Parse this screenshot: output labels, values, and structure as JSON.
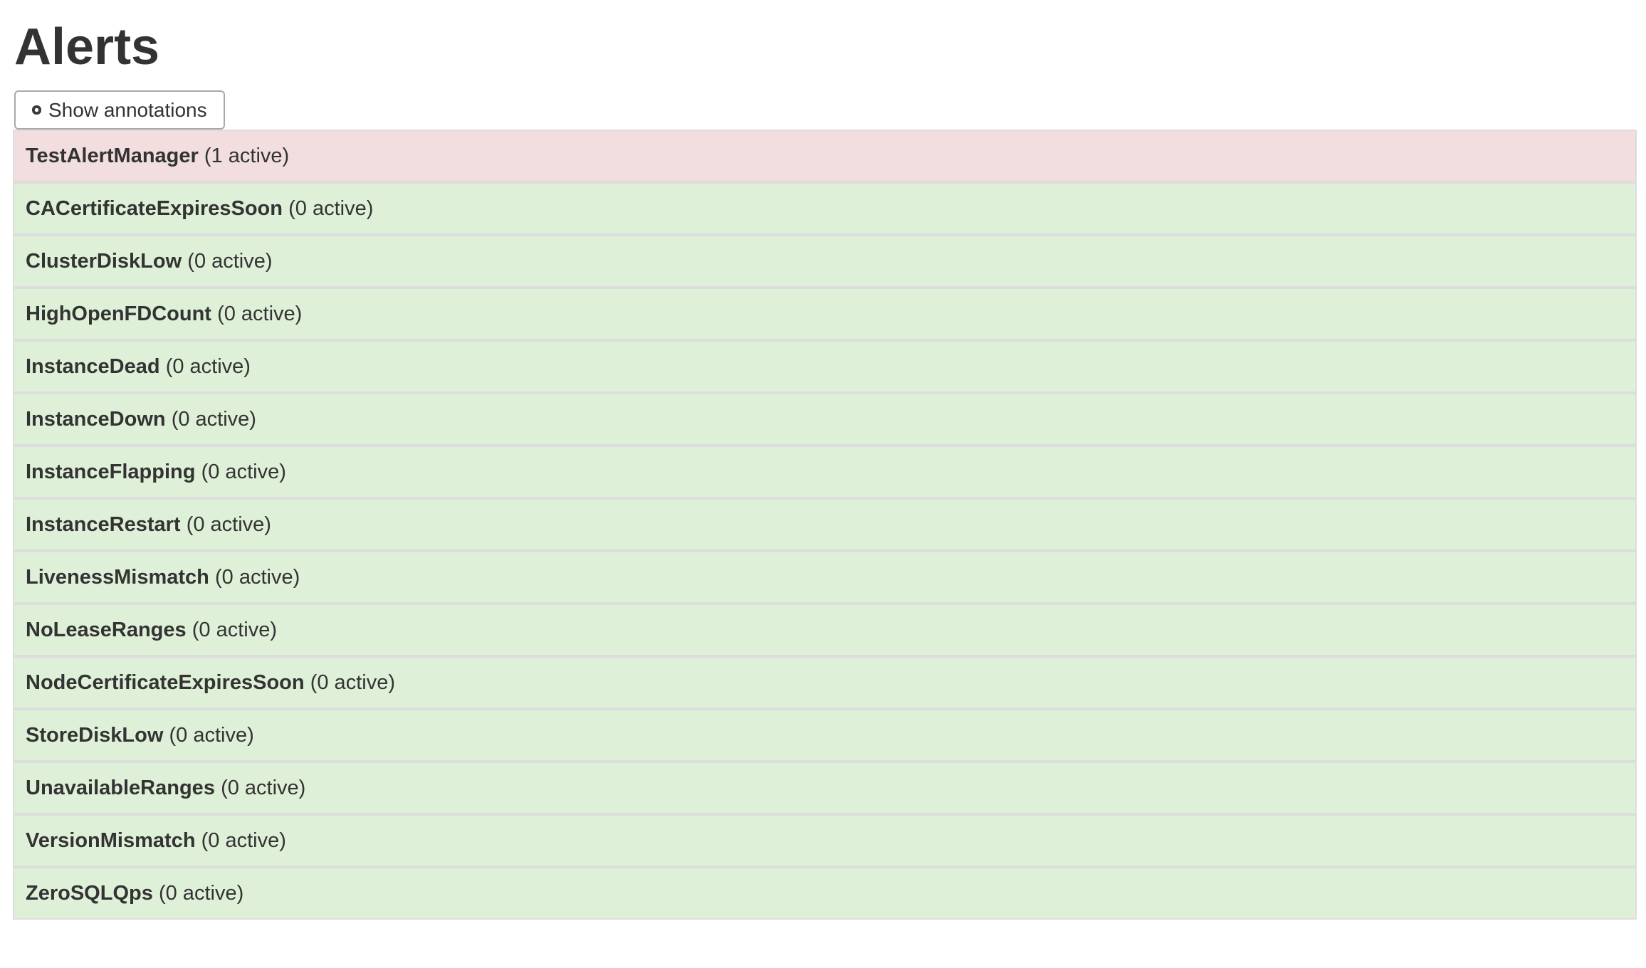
{
  "page": {
    "title": "Alerts"
  },
  "toolbar": {
    "show_annotations_label": "Show annotations",
    "checkbox_checked": false
  },
  "colors": {
    "firing_row_bg": "#f2dede",
    "inactive_row_bg": "#dff0d8",
    "row_border": "#dddddd",
    "text": "#333333",
    "button_border": "#a9a9a9",
    "page_bg": "#ffffff"
  },
  "alerts": [
    {
      "name": "TestAlertManager",
      "active_count": 1,
      "count_label": "(1 active)",
      "state": "firing"
    },
    {
      "name": "CACertificateExpiresSoon",
      "active_count": 0,
      "count_label": "(0 active)",
      "state": "inactive"
    },
    {
      "name": "ClusterDiskLow",
      "active_count": 0,
      "count_label": "(0 active)",
      "state": "inactive"
    },
    {
      "name": "HighOpenFDCount",
      "active_count": 0,
      "count_label": "(0 active)",
      "state": "inactive"
    },
    {
      "name": "InstanceDead",
      "active_count": 0,
      "count_label": "(0 active)",
      "state": "inactive"
    },
    {
      "name": "InstanceDown",
      "active_count": 0,
      "count_label": "(0 active)",
      "state": "inactive"
    },
    {
      "name": "InstanceFlapping",
      "active_count": 0,
      "count_label": "(0 active)",
      "state": "inactive"
    },
    {
      "name": "InstanceRestart",
      "active_count": 0,
      "count_label": "(0 active)",
      "state": "inactive"
    },
    {
      "name": "LivenessMismatch",
      "active_count": 0,
      "count_label": "(0 active)",
      "state": "inactive"
    },
    {
      "name": "NoLeaseRanges",
      "active_count": 0,
      "count_label": "(0 active)",
      "state": "inactive"
    },
    {
      "name": "NodeCertificateExpiresSoon",
      "active_count": 0,
      "count_label": "(0 active)",
      "state": "inactive"
    },
    {
      "name": "StoreDiskLow",
      "active_count": 0,
      "count_label": "(0 active)",
      "state": "inactive"
    },
    {
      "name": "UnavailableRanges",
      "active_count": 0,
      "count_label": "(0 active)",
      "state": "inactive"
    },
    {
      "name": "VersionMismatch",
      "active_count": 0,
      "count_label": "(0 active)",
      "state": "inactive"
    },
    {
      "name": "ZeroSQLQps",
      "active_count": 0,
      "count_label": "(0 active)",
      "state": "inactive"
    }
  ]
}
